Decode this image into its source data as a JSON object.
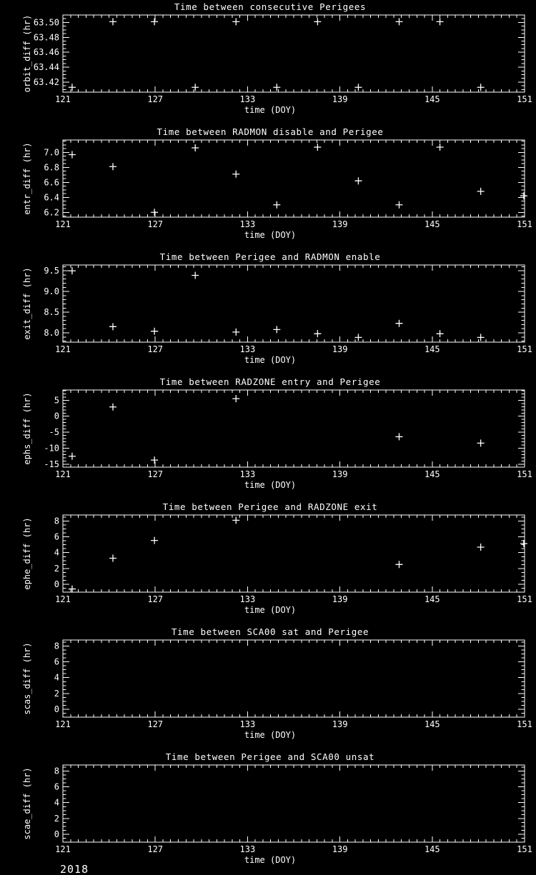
{
  "page": {
    "background_color": "#000000",
    "foreground_color": "#ffffff"
  },
  "footer": {
    "year": "2018"
  },
  "chart_data": [
    {
      "key": "orbit_diff",
      "type": "scatter",
      "title": "Time between consecutive Perigees",
      "xlabel": "time (DOY)",
      "ylabel": "orbit_diff (hr)",
      "marker": "plus",
      "grid": "off",
      "legend": "none",
      "xlim": [
        121,
        151
      ],
      "xticks": [
        121,
        127,
        133,
        139,
        145,
        151
      ],
      "xtick_labels": [
        "121",
        "127",
        "133",
        "139",
        "145",
        "151"
      ],
      "x_minor_step": 0.5,
      "ylim": [
        63.4065,
        63.51
      ],
      "yticks": [
        63.42,
        63.44,
        63.46,
        63.48,
        63.5
      ],
      "ytick_labels": [
        "63.42",
        "63.44",
        "63.46",
        "63.48",
        "63.50"
      ],
      "y_minor_step": 0.005,
      "points": [
        [
          121.6,
          63.413
        ],
        [
          124.25,
          63.501
        ],
        [
          126.95,
          63.501
        ],
        [
          129.6,
          63.413
        ],
        [
          132.25,
          63.501
        ],
        [
          134.9,
          63.413
        ],
        [
          137.55,
          63.501
        ],
        [
          140.2,
          63.413
        ],
        [
          142.85,
          63.501
        ],
        [
          145.5,
          63.501
        ],
        [
          148.15,
          63.413
        ]
      ]
    },
    {
      "key": "entr_diff",
      "type": "scatter",
      "title": "Time between RADMON disable and Perigee",
      "xlabel": "time (DOY)",
      "ylabel": "entr_diff (hr)",
      "marker": "plus",
      "grid": "off",
      "legend": "none",
      "xlim": [
        121,
        151
      ],
      "xticks": [
        121,
        127,
        133,
        139,
        145,
        151
      ],
      "xtick_labels": [
        "121",
        "127",
        "133",
        "139",
        "145",
        "151"
      ],
      "x_minor_step": 0.5,
      "ylim": [
        6.136,
        7.165
      ],
      "yticks": [
        6.2,
        6.4,
        6.6,
        6.8,
        7.0
      ],
      "ytick_labels": [
        "6.2",
        "6.4",
        "6.6",
        "6.8",
        "7.0"
      ],
      "y_minor_step": 0.05,
      "points": [
        [
          121.6,
          6.97
        ],
        [
          124.25,
          6.81
        ],
        [
          126.95,
          6.2
        ],
        [
          129.6,
          7.06
        ],
        [
          132.25,
          6.71
        ],
        [
          134.9,
          6.3
        ],
        [
          137.55,
          7.07
        ],
        [
          140.2,
          6.62
        ],
        [
          142.85,
          6.3
        ],
        [
          145.5,
          7.07
        ],
        [
          148.15,
          6.48
        ],
        [
          150.95,
          6.42
        ]
      ]
    },
    {
      "key": "exit_diff",
      "type": "scatter",
      "title": "Time between Perigee and RADMON enable",
      "xlabel": "time (DOY)",
      "ylabel": "exit_diff (hr)",
      "marker": "plus",
      "grid": "off",
      "legend": "none",
      "xlim": [
        121,
        151
      ],
      "xticks": [
        121,
        127,
        133,
        139,
        145,
        151
      ],
      "xtick_labels": [
        "121",
        "127",
        "133",
        "139",
        "145",
        "151"
      ],
      "x_minor_step": 0.5,
      "ylim": [
        7.776,
        9.64
      ],
      "yticks": [
        8.0,
        8.5,
        9.0,
        9.5
      ],
      "ytick_labels": [
        "8.0",
        "8.5",
        "9.0",
        "9.5"
      ],
      "y_minor_step": 0.1,
      "points": [
        [
          121.6,
          9.5
        ],
        [
          124.25,
          8.15
        ],
        [
          126.95,
          8.04
        ],
        [
          129.6,
          9.39
        ],
        [
          132.25,
          8.02
        ],
        [
          134.9,
          8.08
        ],
        [
          137.55,
          7.98
        ],
        [
          140.2,
          7.89
        ],
        [
          142.85,
          8.23
        ],
        [
          145.5,
          7.98
        ],
        [
          148.15,
          7.89
        ]
      ]
    },
    {
      "key": "ephs_diff",
      "type": "scatter",
      "title": "Time between RADZONE entry and Perigee",
      "xlabel": "time (DOY)",
      "ylabel": "ephs_diff (hr)",
      "marker": "plus",
      "grid": "off",
      "legend": "none",
      "xlim": [
        121,
        151
      ],
      "xticks": [
        121,
        127,
        133,
        139,
        145,
        151
      ],
      "xtick_labels": [
        "121",
        "127",
        "133",
        "139",
        "145",
        "151"
      ],
      "x_minor_step": 0.5,
      "ylim": [
        -15.9,
        8.2
      ],
      "yticks": [
        -15,
        -10,
        -5,
        0,
        5
      ],
      "ytick_labels": [
        "-15",
        "-10",
        "-5",
        "0",
        "5"
      ],
      "y_minor_step": 1,
      "points": [
        [
          121.6,
          -12.5
        ],
        [
          124.25,
          2.9
        ],
        [
          126.95,
          -13.7
        ],
        [
          132.25,
          5.5
        ],
        [
          142.85,
          -6.4
        ],
        [
          148.15,
          -8.4
        ]
      ]
    },
    {
      "key": "ephe_diff",
      "type": "scatter",
      "title": "Time between Perigee and RADZONE exit",
      "xlabel": "time (DOY)",
      "ylabel": "ephe_diff (hr)",
      "marker": "plus",
      "grid": "off",
      "legend": "none",
      "xlim": [
        121,
        151
      ],
      "xticks": [
        121,
        127,
        133,
        139,
        145,
        151
      ],
      "xtick_labels": [
        "121",
        "127",
        "133",
        "139",
        "145",
        "151"
      ],
      "x_minor_step": 0.5,
      "ylim": [
        -1.0,
        8.77
      ],
      "yticks": [
        0,
        2,
        4,
        6,
        8
      ],
      "ytick_labels": [
        "0",
        "2",
        "4",
        "6",
        "8"
      ],
      "y_minor_step": 0.5,
      "points": [
        [
          121.6,
          -0.6
        ],
        [
          124.25,
          3.3
        ],
        [
          126.95,
          5.55
        ],
        [
          132.25,
          8.1
        ],
        [
          142.85,
          2.5
        ],
        [
          148.15,
          4.7
        ],
        [
          150.95,
          5.15
        ]
      ]
    },
    {
      "key": "scas_diff",
      "type": "scatter",
      "title": "Time between SCA00 sat and Perigee",
      "xlabel": "time (DOY)",
      "ylabel": "scas_diff (hr)",
      "marker": "plus",
      "grid": "off",
      "legend": "none",
      "xlim": [
        121,
        151
      ],
      "xticks": [
        121,
        127,
        133,
        139,
        145,
        151
      ],
      "xtick_labels": [
        "121",
        "127",
        "133",
        "139",
        "145",
        "151"
      ],
      "x_minor_step": 0.5,
      "ylim": [
        -1.0,
        8.77
      ],
      "yticks": [
        0,
        2,
        4,
        6,
        8
      ],
      "ytick_labels": [
        "0",
        "2",
        "4",
        "6",
        "8"
      ],
      "y_minor_step": 0.5,
      "points": []
    },
    {
      "key": "scae_diff",
      "type": "scatter",
      "title": "Time between Perigee and SCA00 unsat",
      "xlabel": "time (DOY)",
      "ylabel": "scae_diff (hr)",
      "marker": "plus",
      "grid": "off",
      "legend": "none",
      "xlim": [
        121,
        151
      ],
      "xticks": [
        121,
        127,
        133,
        139,
        145,
        151
      ],
      "xtick_labels": [
        "121",
        "127",
        "133",
        "139",
        "145",
        "151"
      ],
      "x_minor_step": 0.5,
      "ylim": [
        -1.0,
        8.77
      ],
      "yticks": [
        0,
        2,
        4,
        6,
        8
      ],
      "ytick_labels": [
        "0",
        "2",
        "4",
        "6",
        "8"
      ],
      "y_minor_step": 0.5,
      "points": []
    }
  ]
}
